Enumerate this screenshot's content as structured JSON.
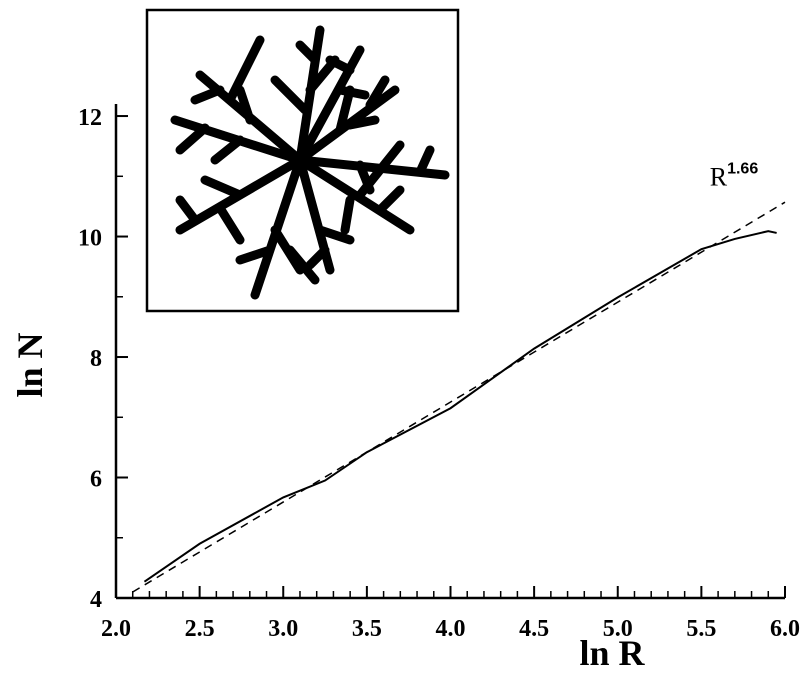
{
  "chart_data": {
    "type": "line",
    "x_label": "ln R",
    "y_label": "ln N",
    "annotation": {
      "base": "R",
      "exponent": "1.66",
      "x": 5.55,
      "y": 10.85
    },
    "xlim": [
      2.0,
      6.0
    ],
    "ylim": [
      4,
      12.2
    ],
    "xticks": [
      {
        "value": 2.0,
        "label": "2.0"
      },
      {
        "value": 2.5,
        "label": "2.5"
      },
      {
        "value": 3.0,
        "label": "3.0"
      },
      {
        "value": 3.5,
        "label": "3.5"
      },
      {
        "value": 4.0,
        "label": "4.0"
      },
      {
        "value": 4.5,
        "label": "4.5"
      },
      {
        "value": 5.0,
        "label": "5.0"
      },
      {
        "value": 5.5,
        "label": "5.5"
      },
      {
        "value": 6.0,
        "label": "6.0"
      }
    ],
    "yticks": [
      4,
      6,
      8,
      10,
      12
    ],
    "series": [
      {
        "style": "solid",
        "color": "#000000",
        "x": [
          2.17,
          2.5,
          3.0,
          3.25,
          3.5,
          4.0,
          4.5,
          5.0,
          5.5,
          5.7,
          5.9,
          5.95
        ],
        "values": [
          4.27,
          4.9,
          5.67,
          5.95,
          6.42,
          7.15,
          8.14,
          8.99,
          9.79,
          9.96,
          10.09,
          10.06
        ]
      },
      {
        "style": "dashed",
        "color": "#000000",
        "x": [
          2.1,
          6.0
        ],
        "values": [
          4.1,
          10.57
        ]
      }
    ]
  }
}
